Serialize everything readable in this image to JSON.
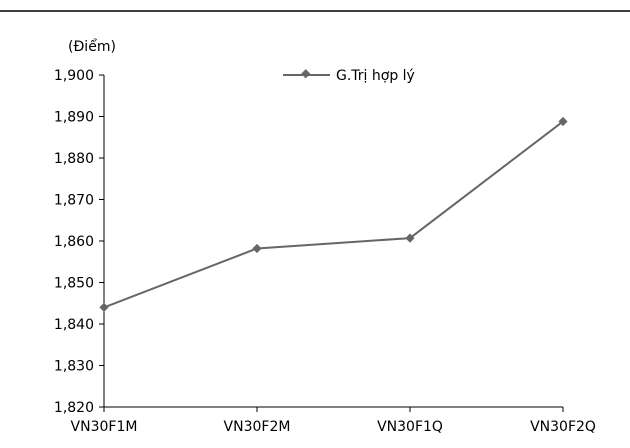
{
  "chart_data": {
    "type": "line",
    "unit_label": "(Điểm)",
    "categories": [
      "VN30F1M",
      "VN30F2M",
      "VN30F1Q",
      "VN30F2Q"
    ],
    "series": [
      {
        "name": "G.Trị hợp lý",
        "values": [
          1844.0,
          1858.2,
          1860.7,
          1888.8
        ]
      }
    ],
    "ylim": [
      1820,
      1900
    ],
    "yticks": [
      "1,820",
      "1,830",
      "1,840",
      "1,850",
      "1,860",
      "1,870",
      "1,880",
      "1,890",
      "1,900"
    ],
    "ytick_values": [
      1820,
      1830,
      1840,
      1850,
      1860,
      1870,
      1880,
      1890,
      1900
    ],
    "grid": false,
    "legend_position": "top-center",
    "line_color": "#666666"
  }
}
